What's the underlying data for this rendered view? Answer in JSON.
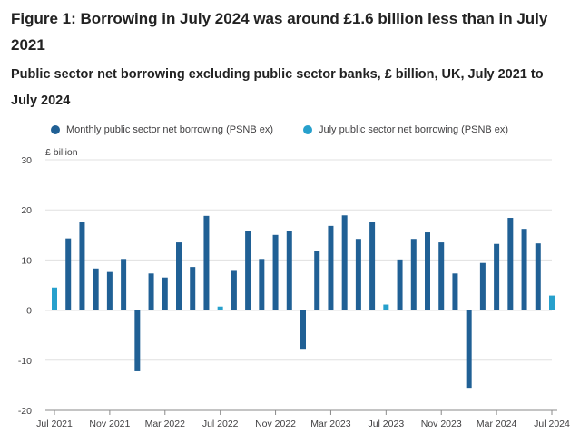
{
  "title": "Figure 1: Borrowing in July 2024 was around £1.6 billion less than in July 2021",
  "subtitle": "Public sector net borrowing excluding public sector banks, £ billion, UK, July 2021 to July 2024",
  "chart_data": {
    "type": "bar",
    "unit_label": "£ billion",
    "ylim": [
      -20,
      30
    ],
    "yticks": [
      -20,
      -10,
      0,
      10,
      20,
      30
    ],
    "grid": true,
    "legend_position": "top-left",
    "x_tick_labels": [
      "Jul 2021",
      "Nov 2021",
      "Mar 2022",
      "Jul 2022",
      "Nov 2022",
      "Mar 2023",
      "Jul 2023",
      "Nov 2023",
      "Mar 2024",
      "Jul 2024"
    ],
    "categories": [
      "Jul 2021",
      "Aug 2021",
      "Sep 2021",
      "Oct 2021",
      "Nov 2021",
      "Dec 2021",
      "Jan 2022",
      "Feb 2022",
      "Mar 2022",
      "Apr 2022",
      "May 2022",
      "Jun 2022",
      "Jul 2022",
      "Aug 2022",
      "Sep 2022",
      "Oct 2022",
      "Nov 2022",
      "Dec 2022",
      "Jan 2023",
      "Feb 2023",
      "Mar 2023",
      "Apr 2023",
      "May 2023",
      "Jun 2023",
      "Jul 2023",
      "Aug 2023",
      "Sep 2023",
      "Oct 2023",
      "Nov 2023",
      "Dec 2023",
      "Jan 2024",
      "Feb 2024",
      "Mar 2024",
      "Apr 2024",
      "May 2024",
      "Jun 2024",
      "Jul 2024"
    ],
    "series": [
      {
        "name": "Monthly public sector net borrowing (PSNB ex)",
        "color": "#206095",
        "values": [
          null,
          14.3,
          17.6,
          8.3,
          7.6,
          10.2,
          -12.2,
          7.3,
          6.5,
          13.5,
          8.6,
          18.8,
          null,
          8.0,
          15.8,
          10.2,
          15.0,
          15.8,
          -7.9,
          11.8,
          16.8,
          18.9,
          14.2,
          17.6,
          null,
          10.1,
          14.2,
          15.5,
          13.5,
          7.3,
          -15.5,
          9.4,
          13.2,
          18.4,
          16.2,
          13.3,
          null
        ]
      },
      {
        "name": "July public sector net borrowing (PSNB ex)",
        "color": "#27a0cc",
        "values": [
          4.5,
          null,
          null,
          null,
          null,
          null,
          null,
          null,
          null,
          null,
          null,
          null,
          0.7,
          null,
          null,
          null,
          null,
          null,
          null,
          null,
          null,
          null,
          null,
          null,
          1.1,
          null,
          null,
          null,
          null,
          null,
          null,
          null,
          null,
          null,
          null,
          null,
          2.9
        ]
      }
    ]
  }
}
